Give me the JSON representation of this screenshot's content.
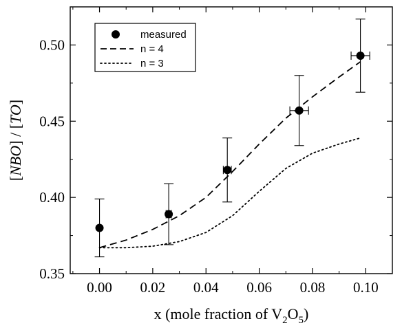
{
  "chart_data": {
    "type": "scatter",
    "xlabel_prefix": "x  (mole fraction of V",
    "xlabel_sub1": "2",
    "xlabel_mid": "O",
    "xlabel_sub2": "5",
    "xlabel_suffix": ")",
    "ylabel_parts": [
      "[",
      "NBO",
      "] / [",
      "TO",
      "]"
    ],
    "xlim": [
      -0.011,
      0.11
    ],
    "ylim": [
      0.35,
      0.525
    ],
    "x_ticks": [
      0.0,
      0.02,
      0.04,
      0.06,
      0.08,
      0.1
    ],
    "x_tick_labels": [
      "0.00",
      "0.02",
      "0.04",
      "0.06",
      "0.08",
      "0.10"
    ],
    "y_ticks": [
      0.35,
      0.4,
      0.45,
      0.5
    ],
    "y_tick_labels": [
      "0.35",
      "0.40",
      "0.45",
      "0.50"
    ],
    "legend_position": "top-left",
    "series": [
      {
        "name": "measured",
        "kind": "points-with-errorbars",
        "points": [
          {
            "x": 0.0,
            "y": 0.38,
            "yerr": 0.019,
            "xerr": 0.0
          },
          {
            "x": 0.026,
            "y": 0.389,
            "yerr": 0.02,
            "xerr": 0.001
          },
          {
            "x": 0.048,
            "y": 0.418,
            "yerr": 0.021,
            "xerr": 0.0015
          },
          {
            "x": 0.075,
            "y": 0.457,
            "yerr": 0.023,
            "xerr": 0.0035
          },
          {
            "x": 0.098,
            "y": 0.493,
            "yerr": 0.024,
            "xerr": 0.0035
          }
        ]
      },
      {
        "name": "n = 4",
        "kind": "dashed-line",
        "x": [
          0.0,
          0.01,
          0.02,
          0.03,
          0.04,
          0.05,
          0.06,
          0.07,
          0.08,
          0.09,
          0.098
        ],
        "y": [
          0.367,
          0.372,
          0.379,
          0.388,
          0.4,
          0.417,
          0.435,
          0.452,
          0.466,
          0.479,
          0.489
        ]
      },
      {
        "name": "n = 3",
        "kind": "dotted-line",
        "x": [
          0.0,
          0.01,
          0.02,
          0.03,
          0.04,
          0.05,
          0.06,
          0.07,
          0.08,
          0.09,
          0.098
        ],
        "y": [
          0.367,
          0.367,
          0.368,
          0.371,
          0.377,
          0.388,
          0.404,
          0.419,
          0.429,
          0.435,
          0.439
        ]
      }
    ]
  }
}
